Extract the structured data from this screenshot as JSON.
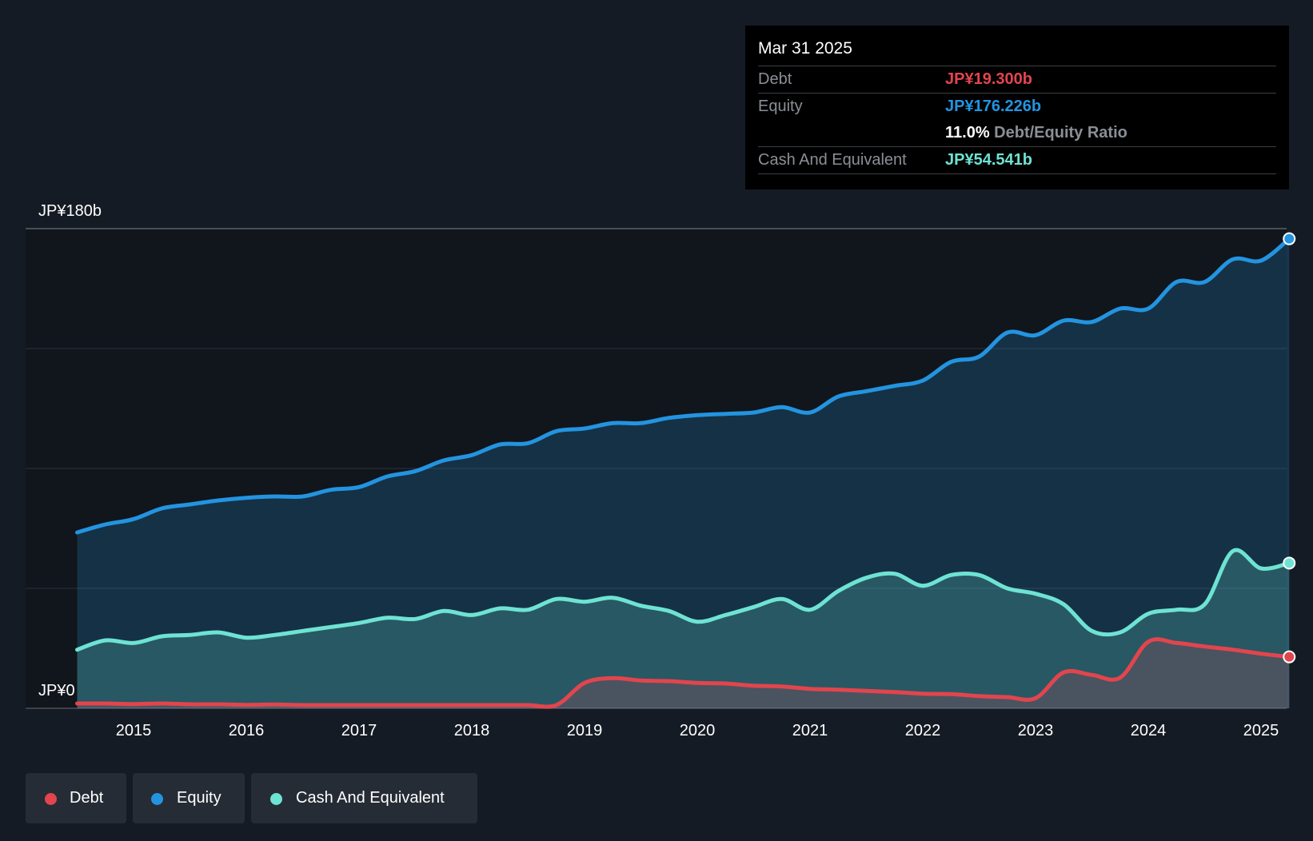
{
  "tooltip": {
    "date": "Mar 31 2025",
    "debt_label": "Debt",
    "debt_value": "JP¥19.300b",
    "equity_label": "Equity",
    "equity_value": "JP¥176.226b",
    "ratio_value": "11.0%",
    "ratio_label": "Debt/Equity Ratio",
    "cash_label": "Cash And Equivalent",
    "cash_value": "JP¥54.541b"
  },
  "legend": {
    "debt": "Debt",
    "equity": "Equity",
    "cash": "Cash And Equivalent"
  },
  "colors": {
    "debt": "#e2454d",
    "equity": "#2394e0",
    "cash": "#6ee3d3",
    "background": "#151b24"
  },
  "chart_data": {
    "type": "area",
    "title": "",
    "xlabel": "",
    "ylabel": "",
    "ylim": [
      0,
      180
    ],
    "y_unit": "JP¥b",
    "y_tick_labels": [
      "JP¥180b",
      "JP¥0"
    ],
    "x_tick_labels": [
      "2015",
      "2016",
      "2017",
      "2018",
      "2019",
      "2020",
      "2021",
      "2022",
      "2023",
      "2024",
      "2025"
    ],
    "x": [
      2014.5,
      2014.75,
      2015.0,
      2015.25,
      2015.5,
      2015.75,
      2016.0,
      2016.25,
      2016.5,
      2016.75,
      2017.0,
      2017.25,
      2017.5,
      2017.75,
      2018.0,
      2018.25,
      2018.5,
      2018.75,
      2019.0,
      2019.25,
      2019.5,
      2019.75,
      2020.0,
      2020.25,
      2020.5,
      2020.75,
      2021.0,
      2021.25,
      2021.5,
      2021.75,
      2022.0,
      2022.25,
      2022.5,
      2022.75,
      2023.0,
      2023.25,
      2023.5,
      2023.75,
      2024.0,
      2024.25,
      2024.5,
      2024.75,
      2025.0,
      2025.25
    ],
    "series": [
      {
        "name": "Equity",
        "values": [
          66,
          69,
          71,
          75,
          76.5,
          78,
          79,
          79.5,
          79.5,
          82,
          83,
          87,
          89,
          93,
          95,
          99,
          99.5,
          104,
          105,
          107,
          107,
          109,
          110,
          110.5,
          111,
          113,
          111,
          117,
          119,
          121,
          123,
          130,
          132,
          141,
          140,
          145.5,
          145,
          150,
          150,
          160,
          160,
          168.5,
          168,
          176.2
        ]
      },
      {
        "name": "Cash And Equivalent",
        "values": [
          22,
          25.5,
          24.5,
          27,
          27.5,
          28.5,
          26.5,
          27.5,
          29,
          30.5,
          32,
          34,
          33.5,
          36.5,
          35,
          37.5,
          37,
          41,
          40,
          41.5,
          38.5,
          36.5,
          32.5,
          35,
          38,
          41,
          37,
          44,
          49,
          50.5,
          46,
          50,
          50,
          45,
          43,
          39,
          29,
          28.5,
          35.5,
          37,
          39,
          59,
          52.5,
          54.5
        ]
      },
      {
        "name": "Debt",
        "values": [
          1.8,
          1.8,
          1.6,
          1.8,
          1.5,
          1.5,
          1.3,
          1.4,
          1.2,
          1.2,
          1.2,
          1.2,
          1.2,
          1.2,
          1.2,
          1.2,
          1.2,
          1.2,
          9.5,
          11.3,
          10.4,
          10.2,
          9.5,
          9.3,
          8.5,
          8.2,
          7.3,
          7,
          6.5,
          6.1,
          5.5,
          5.3,
          4.6,
          4.2,
          3.8,
          13.5,
          12.5,
          11.5,
          25,
          24.5,
          23.2,
          22,
          20.5,
          19.3
        ]
      }
    ]
  }
}
